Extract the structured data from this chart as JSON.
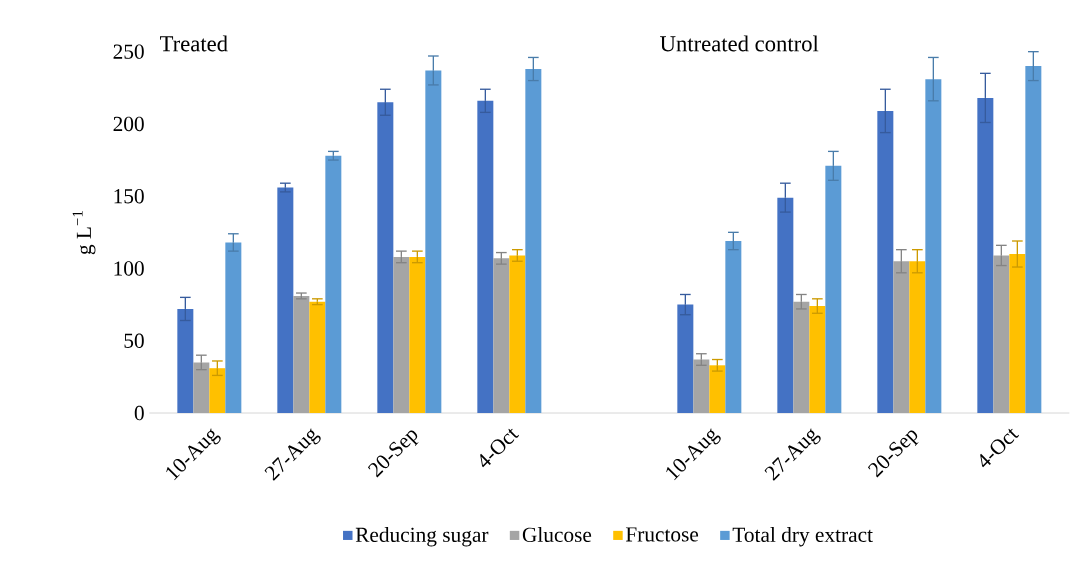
{
  "chart_data": {
    "type": "bar",
    "ylabel": "g L$^{−1}$",
    "annotations": [
      "Treated",
      "Untreated control"
    ],
    "categories": [
      "10-Aug",
      "27-Aug",
      "20-Sep",
      "4-Oct",
      null,
      "10-Aug",
      "27-Aug",
      "20-Sep",
      "4-Oct"
    ],
    "series": [
      {
        "name": "Reducing sugar",
        "color": "#4472c4",
        "values": [
          72,
          156,
          215,
          216,
          null,
          75,
          149,
          209,
          218
        ],
        "errors": [
          8,
          3,
          9,
          8,
          null,
          7,
          10,
          15,
          17
        ]
      },
      {
        "name": "Glucose",
        "color": "#a5a5a5",
        "values": [
          35,
          81,
          108,
          107,
          null,
          37,
          77,
          105,
          109
        ],
        "errors": [
          5,
          2,
          4,
          4,
          null,
          4,
          5,
          8,
          7
        ]
      },
      {
        "name": "Fructose",
        "color": "#ffc000",
        "values": [
          31,
          77,
          108,
          109,
          null,
          33,
          74,
          105,
          110
        ],
        "errors": [
          5,
          2,
          4,
          4,
          null,
          4,
          5,
          8,
          9
        ]
      },
      {
        "name": "Total dry extract",
        "color": "#5b9bd5",
        "values": [
          118,
          178,
          237,
          238,
          null,
          119,
          171,
          231,
          240
        ],
        "errors": [
          6,
          3,
          10,
          8,
          null,
          6,
          10,
          15,
          10
        ]
      }
    ],
    "ylim": [
      0,
      250
    ],
    "yticks": [
      0,
      50,
      100,
      150,
      200,
      250
    ],
    "grid": false,
    "legend": "bottom"
  }
}
